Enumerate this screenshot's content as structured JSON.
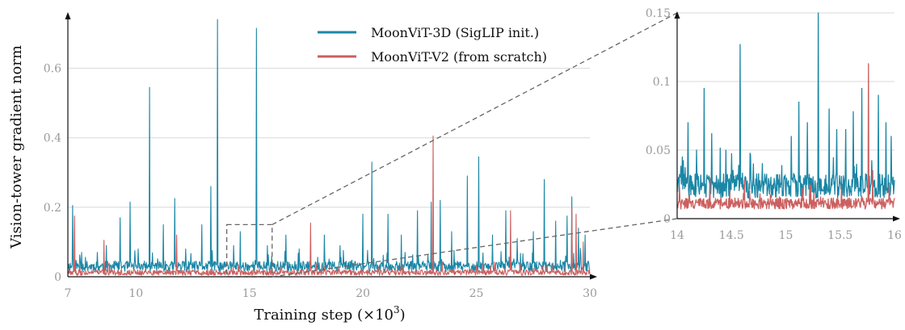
{
  "chart_data": [
    {
      "type": "line",
      "xlabel": "Training step (×10",
      "xlabel_sup": "3",
      "xlabel_close": ")",
      "ylabel": "Vision-tower gradient norm",
      "xlim": [
        7,
        30
      ],
      "ylim": [
        0,
        0.75
      ],
      "x_ticks": [
        7,
        10,
        15,
        20,
        25,
        30
      ],
      "x_tick_labels": [
        "7",
        "10",
        "15",
        "20",
        "25",
        "30"
      ],
      "y_ticks": [
        0,
        0.2,
        0.4,
        0.6
      ],
      "y_tick_labels": [
        "0",
        "0.2",
        "0.4",
        "0.6"
      ],
      "grid": "horizontal",
      "legend_position": "top-center",
      "series": [
        {
          "name": "MoonViT-3D (SigLIP init.)",
          "color": "#1b87a6",
          "baseline": 0.03,
          "noise": 0.015,
          "spikes": [
            [
              7.2,
              0.205
            ],
            [
              7.6,
              0.07
            ],
            [
              8.3,
              0.07
            ],
            [
              8.7,
              0.09
            ],
            [
              9.3,
              0.17
            ],
            [
              9.75,
              0.215
            ],
            [
              10.1,
              0.08
            ],
            [
              10.6,
              0.545
            ],
            [
              11.2,
              0.15
            ],
            [
              11.7,
              0.225
            ],
            [
              12.2,
              0.08
            ],
            [
              12.9,
              0.15
            ],
            [
              13.3,
              0.26
            ],
            [
              13.6,
              0.74
            ],
            [
              14.3,
              0.09
            ],
            [
              14.6,
              0.13
            ],
            [
              15.3,
              0.715
            ],
            [
              15.8,
              0.09
            ],
            [
              16.6,
              0.12
            ],
            [
              17.2,
              0.08
            ],
            [
              18.3,
              0.12
            ],
            [
              19.0,
              0.09
            ],
            [
              20.0,
              0.18
            ],
            [
              20.4,
              0.33
            ],
            [
              21.1,
              0.18
            ],
            [
              21.7,
              0.12
            ],
            [
              22.4,
              0.19
            ],
            [
              23.0,
              0.215
            ],
            [
              23.4,
              0.22
            ],
            [
              23.9,
              0.13
            ],
            [
              24.6,
              0.29
            ],
            [
              25.1,
              0.345
            ],
            [
              25.7,
              0.12
            ],
            [
              26.3,
              0.19
            ],
            [
              26.8,
              0.11
            ],
            [
              27.5,
              0.13
            ],
            [
              28.0,
              0.28
            ],
            [
              28.5,
              0.16
            ],
            [
              29.0,
              0.175
            ],
            [
              29.2,
              0.23
            ],
            [
              29.5,
              0.14
            ],
            [
              29.8,
              0.12
            ]
          ]
        },
        {
          "name": "MoonViT-V2 (from scratch)",
          "color": "#cc5f5f",
          "baseline": 0.012,
          "noise": 0.008,
          "spikes": [
            [
              7.3,
              0.175
            ],
            [
              8.6,
              0.105
            ],
            [
              11.8,
              0.12
            ],
            [
              17.7,
              0.155
            ],
            [
              23.1,
              0.405
            ],
            [
              26.5,
              0.19
            ],
            [
              29.2,
              0.2
            ],
            [
              29.4,
              0.18
            ],
            [
              29.7,
              0.1
            ]
          ]
        }
      ]
    },
    {
      "type": "line",
      "xlim": [
        14,
        16
      ],
      "ylim": [
        0,
        0.15
      ],
      "x_ticks": [
        14,
        14.5,
        15,
        15.5,
        16
      ],
      "x_tick_labels": [
        "14",
        "14.5",
        "15",
        "15.5",
        "16"
      ],
      "y_ticks": [
        0,
        0.05,
        0.1,
        0.15
      ],
      "y_tick_labels": [
        "0",
        "0.05",
        "0.1",
        "0.15"
      ],
      "grid": "horizontal",
      "zoom_of_main_x": [
        14,
        16
      ],
      "zoom_of_main_y": [
        0,
        0.15
      ],
      "series": [
        {
          "name": "MoonViT-3D (SigLIP init.)",
          "color": "#1b87a6",
          "baseline": 0.024,
          "noise": 0.009,
          "spikes": [
            [
              14.05,
              0.045
            ],
            [
              14.1,
              0.07
            ],
            [
              14.18,
              0.05
            ],
            [
              14.25,
              0.095
            ],
            [
              14.32,
              0.062
            ],
            [
              14.45,
              0.05
            ],
            [
              14.58,
              0.127
            ],
            [
              14.7,
              0.04
            ],
            [
              15.05,
              0.06
            ],
            [
              15.12,
              0.085
            ],
            [
              15.2,
              0.07
            ],
            [
              15.3,
              0.15
            ],
            [
              15.4,
              0.08
            ],
            [
              15.47,
              0.065
            ],
            [
              15.55,
              0.065
            ],
            [
              15.62,
              0.078
            ],
            [
              15.7,
              0.095
            ],
            [
              15.85,
              0.09
            ],
            [
              15.92,
              0.07
            ],
            [
              15.97,
              0.06
            ]
          ]
        },
        {
          "name": "MoonViT-V2 (from scratch)",
          "color": "#cc5f5f",
          "baseline": 0.011,
          "noise": 0.004,
          "spikes": [
            [
              14.3,
              0.03
            ],
            [
              14.62,
              0.028
            ],
            [
              15.22,
              0.025
            ],
            [
              15.76,
              0.113
            ],
            [
              15.8,
              0.035
            ],
            [
              15.95,
              0.025
            ]
          ]
        }
      ]
    }
  ]
}
